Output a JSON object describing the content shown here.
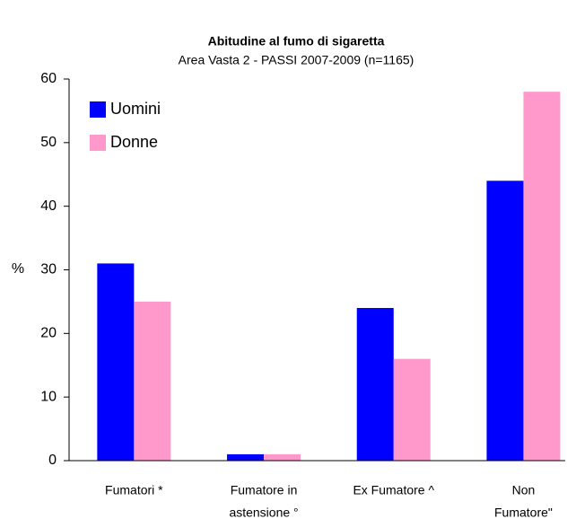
{
  "chart_data": {
    "type": "bar",
    "title": "Abitudine al fumo di sigaretta",
    "subtitle": "Area Vasta 2 - PASSI 2007-2009   (n=1165)",
    "y_label": "%",
    "categories": [
      [
        "Fumatori *"
      ],
      [
        "Fumatore in",
        "astensione °"
      ],
      [
        "Ex Fumatore ^"
      ],
      [
        "Non",
        "Fumatore\""
      ]
    ],
    "series": [
      {
        "name": "Uomini",
        "color": "#0000ff",
        "values": [
          31,
          1,
          24,
          44
        ]
      },
      {
        "name": "Donne",
        "color": "#ff99cc",
        "values": [
          25,
          1,
          16,
          58
        ]
      }
    ],
    "ylim": [
      0,
      60
    ],
    "yticks": [
      0,
      10,
      20,
      30,
      40,
      50,
      60
    ],
    "grid": false,
    "legend": "top-left"
  }
}
